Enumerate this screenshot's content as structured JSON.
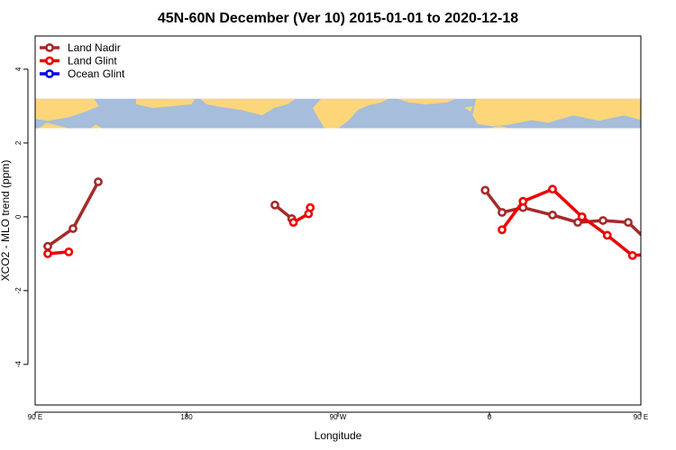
{
  "chart_data": {
    "type": "line",
    "title": "45N-60N December (Ver 10)   2015-01-01 to 2020-12-18",
    "xlabel": "Longitude",
    "ylabel": "XCO2 - MLO trend (ppm)",
    "xlim": [
      90,
      450
    ],
    "ylim": [
      -5.1,
      4.9
    ],
    "x_ticks": [
      {
        "value": 90,
        "label": "90 E"
      },
      {
        "value": 180,
        "label": "180"
      },
      {
        "value": 270,
        "label": "90 W"
      },
      {
        "value": 360,
        "label": "0"
      },
      {
        "value": 450,
        "label": "90 E"
      },
      {
        "value": 540,
        "label": "180"
      }
    ],
    "y_ticks": [
      {
        "value": 4,
        "label": "4"
      },
      {
        "value": 2,
        "label": "2"
      },
      {
        "value": 0,
        "label": "0"
      },
      {
        "value": -2,
        "label": "-2"
      },
      {
        "value": -4,
        "label": "-4"
      }
    ],
    "map_band": {
      "y_top": 3.2,
      "y_bottom": 2.4,
      "ocean_color": "#a6bddb",
      "land_color": "#fdd67a"
    },
    "legend_position": "top-left",
    "series": [
      {
        "name": "Land Nadir",
        "color": "#a52a2a",
        "segments": [
          [
            [
              97.5,
              -0.8
            ],
            [
              112.5,
              -0.32
            ],
            [
              127.5,
              0.95
            ]
          ],
          [
            [
              232.5,
              0.32
            ],
            [
              242.5,
              -0.05
            ]
          ],
          [
            [
              357.5,
              0.72
            ],
            [
              367.5,
              0.12
            ],
            [
              380,
              0.25
            ],
            [
              397.5,
              0.05
            ],
            [
              412.5,
              -0.15
            ],
            [
              427.5,
              -0.1
            ],
            [
              442.5,
              -0.15
            ],
            [
              457.5,
              -0.8
            ],
            [
              472.5,
              -0.32
            ],
            [
              487.5,
              0.95
            ]
          ]
        ]
      },
      {
        "name": "Land Glint",
        "color": "#ee0000",
        "segments": [
          [
            [
              97.5,
              -1.0
            ],
            [
              110,
              -0.95
            ]
          ],
          [
            [
              243.5,
              -0.15
            ],
            [
              252.5,
              0.08
            ],
            [
              253.5,
              0.25
            ]
          ],
          [
            [
              367.5,
              -0.35
            ],
            [
              380,
              0.42
            ],
            [
              397.5,
              0.75
            ],
            [
              415,
              0.0
            ],
            [
              430,
              -0.5
            ],
            [
              445,
              -1.05
            ],
            [
              460,
              -1.0
            ],
            [
              470,
              -0.95
            ]
          ]
        ]
      },
      {
        "name": "Ocean Glint",
        "color": "#0000ee",
        "segments": []
      }
    ]
  }
}
